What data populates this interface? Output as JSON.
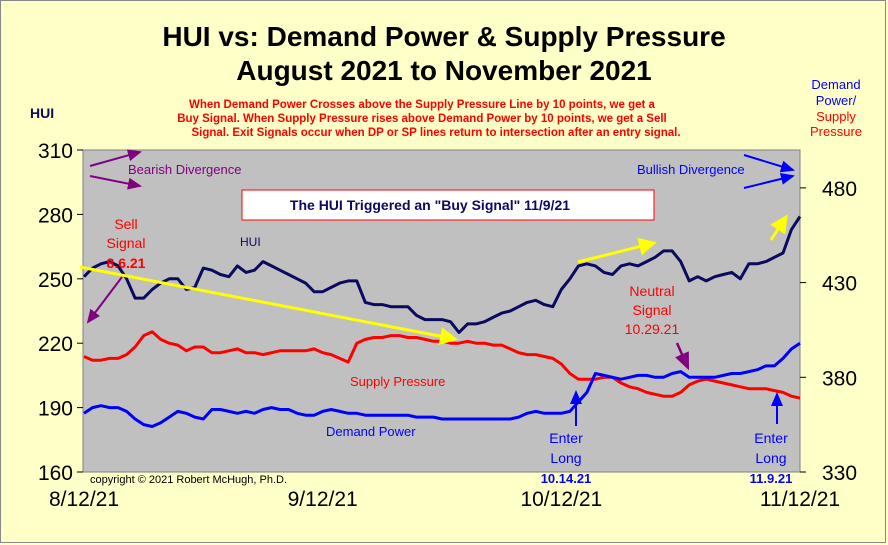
{
  "chart_data": {
    "type": "line",
    "title": "HUI vs: Demand Power & Supply Pressure",
    "subtitle": "August 2021 to November 2021",
    "note_lines": [
      "When Demand Power Crosses above the Supply Pressure Line by 10 points, we get a",
      "Buy Signal.  When Supply Pressure rises above Demand Power by 10 points, we get a Sell",
      "Signal.  Exit Signals occur when DP or SP lines return to intersection after an entry signal."
    ],
    "left_axis_label": "HUI",
    "right_axis_label_lines": [
      "Demand",
      "Power/",
      "Supply",
      "Pressure"
    ],
    "ylim_left": [
      160,
      310
    ],
    "yticks_left": [
      160,
      190,
      220,
      250,
      280,
      310
    ],
    "ylim_right": [
      330,
      500
    ],
    "yticks_right": [
      330,
      380,
      430,
      480
    ],
    "xticks": [
      "8/12/21",
      "9/12/21",
      "10/12/21",
      "11/12/21"
    ],
    "copyright": "copyright © 2021  Robert McHugh, Ph.D.",
    "colors": {
      "hui": "#0a0a5e",
      "supply": "#ff0000",
      "demand": "#0000ff",
      "trend": "#ffff00",
      "annotation": "#800080",
      "plot_bg": "#c0c0c0",
      "page_bg": "#ffffc8"
    },
    "series": [
      {
        "name": "HUI",
        "axis": "left",
        "values": [
          251,
          255,
          257,
          258,
          256,
          250,
          241,
          241,
          245,
          248,
          250,
          250,
          245,
          246,
          255,
          254,
          252,
          251,
          256,
          253,
          254,
          258,
          256,
          254,
          252,
          250,
          248,
          244,
          244,
          246,
          248,
          249,
          249,
          239,
          238,
          238,
          237,
          237,
          237,
          233,
          231,
          231,
          231,
          230,
          225,
          229,
          229,
          230,
          232,
          234,
          235,
          237,
          239,
          240,
          238,
          237,
          245,
          250,
          256,
          257,
          256,
          253,
          252,
          256,
          257,
          256,
          258,
          260,
          263,
          263,
          258,
          249,
          251,
          249,
          251,
          252,
          253,
          250,
          257,
          257,
          258,
          260,
          262,
          273,
          279
        ]
      },
      {
        "name": "Supply Pressure",
        "axis": "right",
        "values": [
          391,
          389,
          389,
          390,
          390,
          392,
          396,
          402,
          404,
          400,
          398,
          397,
          394,
          396,
          396,
          393,
          393,
          394,
          395,
          393,
          393,
          392,
          393,
          394,
          394,
          394,
          394,
          395,
          393,
          392,
          390,
          388,
          398,
          400,
          401,
          401,
          402,
          402,
          401,
          401,
          400,
          399,
          399,
          398,
          398,
          399,
          398,
          398,
          397,
          397,
          395,
          393,
          392,
          392,
          391,
          390,
          387,
          382,
          379,
          379,
          379,
          380,
          380,
          377,
          375,
          374,
          372,
          371,
          370,
          370,
          372,
          376,
          378,
          379,
          378,
          377,
          376,
          375,
          374,
          374,
          374,
          373,
          372,
          370,
          369
        ]
      },
      {
        "name": "Demand Power",
        "axis": "right",
        "values": [
          361,
          364,
          365,
          364,
          364,
          362,
          358,
          355,
          354,
          356,
          359,
          362,
          361,
          359,
          358,
          363,
          363,
          362,
          361,
          362,
          361,
          363,
          364,
          363,
          363,
          361,
          360,
          360,
          362,
          363,
          362,
          361,
          361,
          360,
          360,
          360,
          360,
          360,
          360,
          359,
          359,
          359,
          358,
          358,
          358,
          358,
          358,
          358,
          358,
          358,
          358,
          359,
          361,
          362,
          361,
          361,
          361,
          362,
          367,
          372,
          382,
          381,
          380,
          379,
          380,
          381,
          381,
          380,
          380,
          382,
          383,
          380,
          380,
          380,
          380,
          381,
          382,
          382,
          383,
          384,
          386,
          386,
          390,
          395,
          398
        ]
      }
    ],
    "annotations": {
      "bearish": "Bearish Divergence",
      "bullish": "Bullish Divergence",
      "buy_box": "The HUI Triggered an  \"Buy Signal\" 11/9/21",
      "sell_signal": [
        "Sell",
        "Signal",
        "8.6.21"
      ],
      "hui_label": "HUI",
      "neutral_signal": [
        "Neutral",
        "Signal",
        "10.29.21"
      ],
      "supply_label": "Supply Pressure",
      "demand_label": "Demand Power",
      "enter_long_1": [
        "Enter",
        "Long",
        "10.14.21"
      ],
      "enter_long_2": [
        "Enter",
        "Long",
        "11.9.21"
      ]
    }
  }
}
